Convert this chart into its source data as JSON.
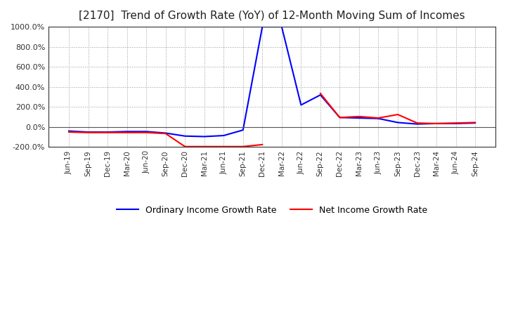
{
  "title": "[2170]  Trend of Growth Rate (YoY) of 12-Month Moving Sum of Incomes",
  "title_fontsize": 11,
  "title_fontweight": "normal",
  "background_color": "#ffffff",
  "plot_bg_color": "#ffffff",
  "grid_color": "#999999",
  "ylim": [
    -200,
    1000
  ],
  "yticks": [
    -200,
    0,
    200,
    400,
    600,
    800,
    1000
  ],
  "ytick_labels": [
    "-200.0%",
    "0.0%",
    "200.0%",
    "400.0%",
    "600.0%",
    "800.0%",
    "1000.0%"
  ],
  "legend_labels": [
    "Ordinary Income Growth Rate",
    "Net Income Growth Rate"
  ],
  "legend_colors": [
    "#0000ff",
    "#ff0000"
  ],
  "x_labels": [
    "Jun-19",
    "Sep-19",
    "Dec-19",
    "Mar-20",
    "Jun-20",
    "Sep-20",
    "Dec-20",
    "Mar-21",
    "Jun-21",
    "Sep-21",
    "Dec-21",
    "Mar-22",
    "Jun-22",
    "Sep-22",
    "Dec-22",
    "Mar-23",
    "Jun-23",
    "Sep-23",
    "Dec-23",
    "Mar-24",
    "Jun-24",
    "Sep-24"
  ],
  "ordinary_income": [
    -40,
    -50,
    -50,
    -45,
    -45,
    -60,
    -90,
    -95,
    -85,
    -30,
    1000,
    1000,
    220,
    320,
    95,
    90,
    85,
    45,
    30,
    35,
    35,
    40
  ],
  "net_income": [
    -50,
    -55,
    -55,
    -55,
    -55,
    -65,
    -195,
    -195,
    -195,
    -195,
    -175,
    null,
    null,
    335,
    95,
    105,
    90,
    125,
    40,
    35,
    40,
    45
  ]
}
